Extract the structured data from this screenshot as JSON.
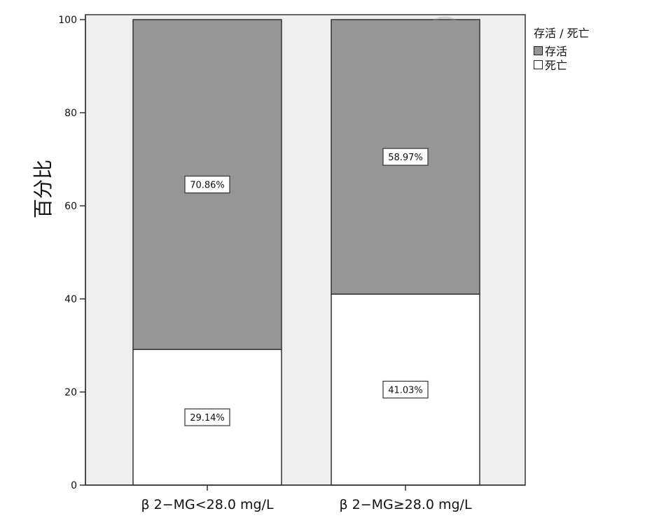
{
  "chart_data": {
    "type": "bar",
    "stacked": true,
    "categories": [
      "β 2−MG<28.0 mg/L",
      "β 2−MG≥28.0 mg/L"
    ],
    "series": [
      {
        "name": "死亡",
        "values": [
          29.14,
          41.03
        ],
        "labels": [
          "29.14%",
          "41.03%"
        ],
        "color": "#ffffff"
      },
      {
        "name": "存活",
        "values": [
          70.86,
          58.97
        ],
        "labels": [
          "70.86%",
          "58.97%"
        ],
        "color": "#969696"
      }
    ],
    "ylabel": "百分比",
    "ylim": [
      0,
      100
    ],
    "yticks": [
      "0",
      "20",
      "40",
      "60",
      "80",
      "100"
    ],
    "legend": {
      "title": "存活 / 死亡",
      "placement": "top-right"
    },
    "plot_background": "#efefef",
    "grid": false
  }
}
